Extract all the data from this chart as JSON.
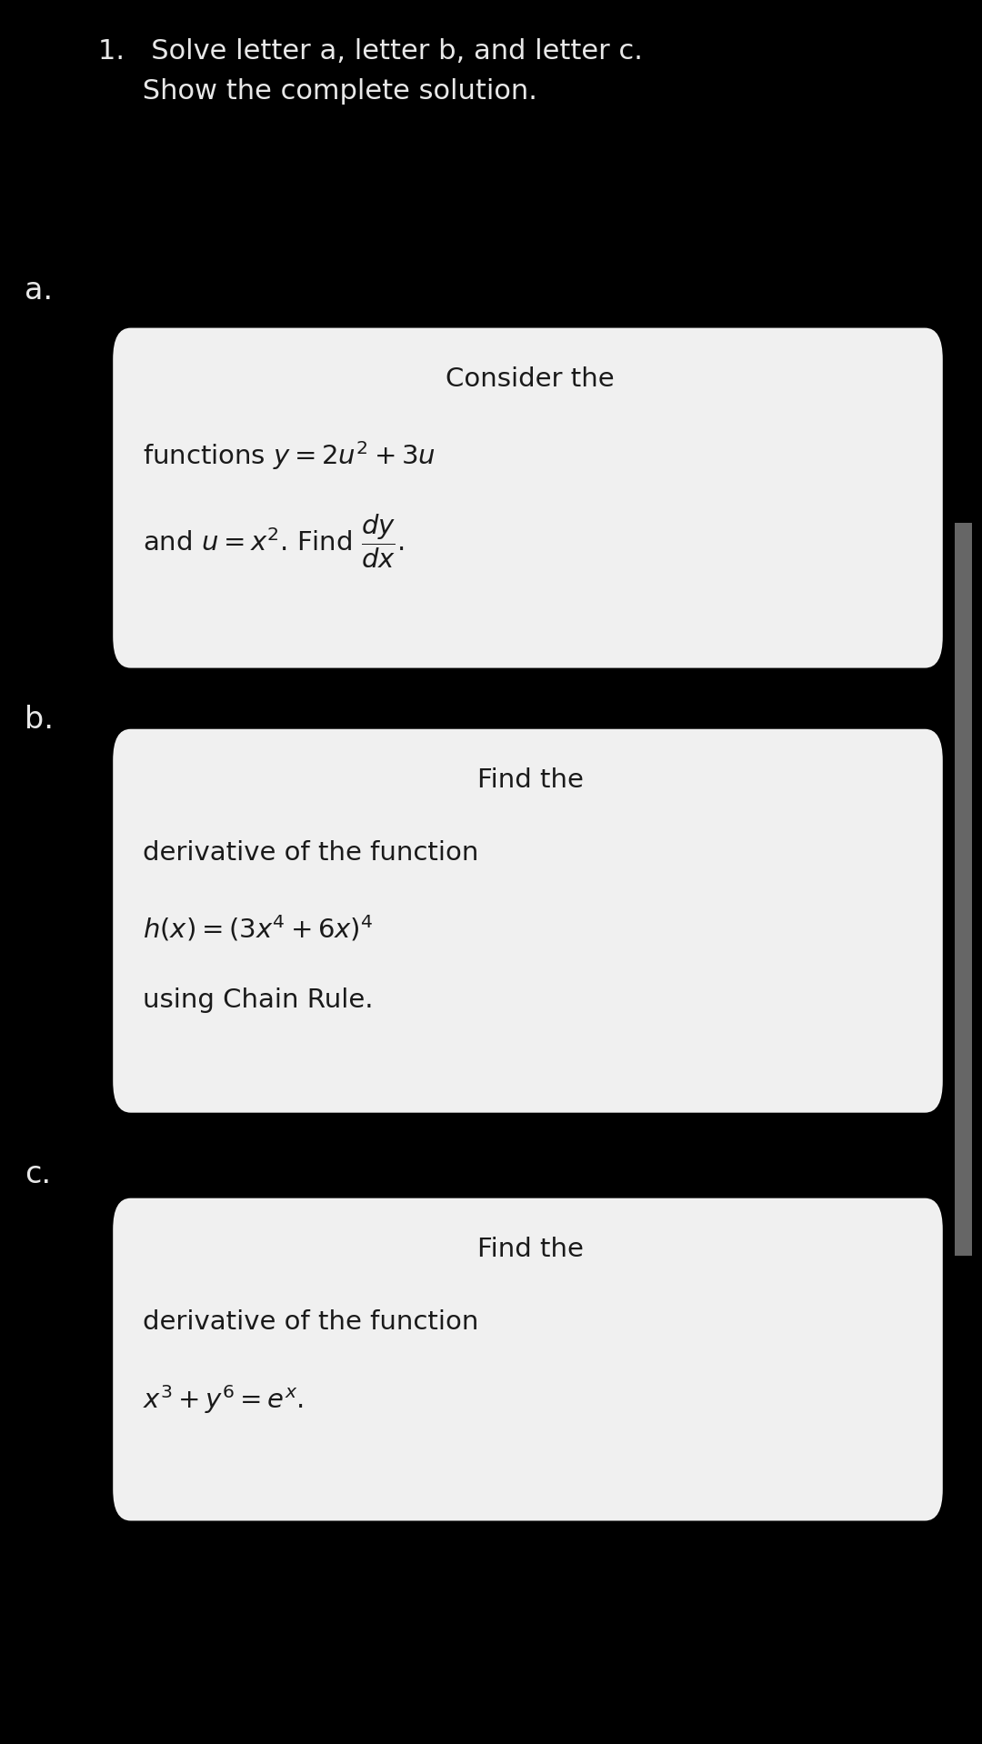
{
  "bg_color": "#000000",
  "text_color": "#e8e8e8",
  "card_color": "#f0f0f0",
  "card_text_color": "#1a1a1a",
  "title_line1": "1.   Solve letter a, letter b, and letter c.",
  "title_line2": "     Show the complete solution.",
  "label_a": "a.",
  "label_b": "b.",
  "label_c": "c.",
  "fig_width": 10.8,
  "fig_height": 19.18,
  "dpi": 100
}
